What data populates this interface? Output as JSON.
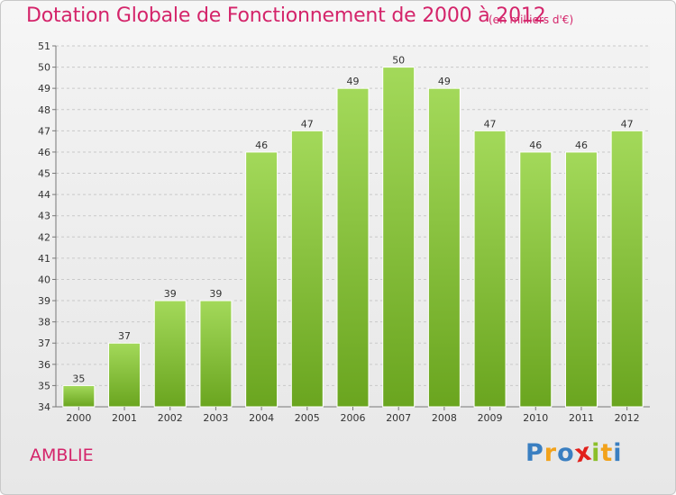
{
  "chart_data": {
    "type": "bar",
    "title": "Dotation Globale de Fonctionnement de 2000 à 2012",
    "subtitle": "(en milliers d'€)",
    "categories": [
      "2000",
      "2001",
      "2002",
      "2003",
      "2004",
      "2005",
      "2006",
      "2007",
      "2008",
      "2009",
      "2010",
      "2011",
      "2012"
    ],
    "values": [
      35,
      37,
      39,
      39,
      46,
      47,
      49,
      50,
      49,
      47,
      46,
      46,
      47
    ],
    "ylim": [
      34,
      51
    ],
    "yticks": [
      34,
      35,
      36,
      37,
      38,
      39,
      40,
      41,
      42,
      43,
      44,
      45,
      46,
      47,
      48,
      49,
      50,
      51
    ],
    "xlabel": "",
    "ylabel": "",
    "grid": true,
    "bar_color": "#8cc83c"
  },
  "commune": "AMBLIE",
  "logo": {
    "letters": [
      "P",
      "r",
      "o",
      "x",
      "i",
      "t",
      "i"
    ],
    "colors": [
      "#3a7fc1",
      "#f2a21b",
      "#3a7fc1",
      "#e2211c",
      "#8bbf2a",
      "#f2a21b",
      "#3a7fc1"
    ]
  }
}
